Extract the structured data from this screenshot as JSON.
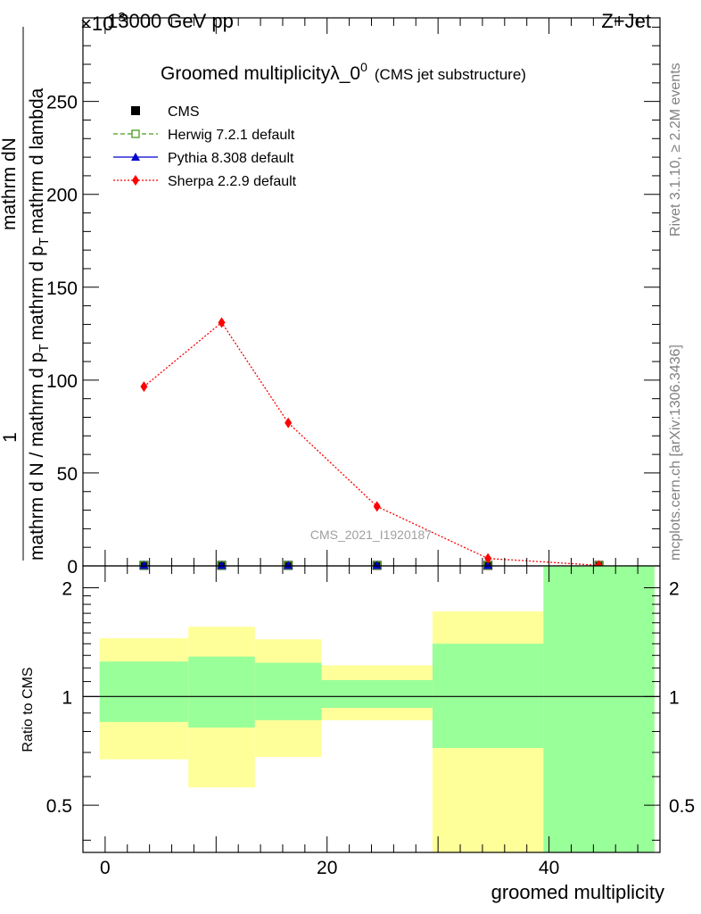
{
  "header": {
    "left": "13000 GeV pp",
    "right": "Z+Jet",
    "exponent": "×10",
    "exponent_power": "-3"
  },
  "side_labels": {
    "rivet": "Rivet 3.1.10, ≥ 2.2M events",
    "mcplots": "mcplots.cern.ch [arXiv:1306.3436]"
  },
  "chart_data": [
    {
      "type": "line",
      "title": "Groomed multiplicityλ_0",
      "title_sup": "0",
      "subtitle": "(CMS jet substructure)",
      "watermark": "CMS_2021_I1920187",
      "ylabel": {
        "numerator": "mathrm dN",
        "prefix": "1",
        "denominator_main": "mathrm d N / mathrm d p",
        "denominator_sub": "T",
        "denominator_tail": "mathrm d p",
        "denominator_tail_sub": "T",
        "denominator_end": "mathrm d lambda",
        "top_part": "mathrm d p",
        "top_sub": "T",
        "top_tail": "mathrm d lambda"
      },
      "xlim": [
        -2,
        50
      ],
      "ylim": [
        0,
        295
      ],
      "yticks": [
        0,
        50,
        100,
        150,
        200,
        250
      ],
      "x_bin_edges": [
        -0.5,
        7.5,
        13.5,
        19.5,
        29.5,
        39.5,
        49.5
      ],
      "x_centers": [
        3.5,
        10.5,
        16.5,
        24.5,
        34.5,
        44.5
      ],
      "legend": [
        {
          "name": "CMS",
          "style": "square",
          "color": "#000000"
        },
        {
          "name": "Herwig 7.2.1 default",
          "style": "open-square-dashed",
          "color": "#4a9a1c"
        },
        {
          "name": "Pythia 8.308 default",
          "style": "triangle-solid",
          "color": "#0000cc"
        },
        {
          "name": "Sherpa 2.2.9 default",
          "style": "diamond-dotted",
          "color": "#ff0000"
        }
      ],
      "series": [
        {
          "name": "CMS",
          "values": [
            0.3,
            0.3,
            0.3,
            0.3,
            0.3,
            0.3
          ]
        },
        {
          "name": "Herwig 7.2.1 default",
          "values": [
            0.3,
            0.3,
            0.3,
            0.3,
            0.3,
            0.3
          ]
        },
        {
          "name": "Pythia 8.308 default",
          "values": [
            0.3,
            0.3,
            0.3,
            0.3,
            0.3,
            0.3
          ]
        },
        {
          "name": "Sherpa 2.2.9 default",
          "values": [
            96.5,
            131,
            77,
            32,
            4,
            0.3
          ]
        }
      ]
    },
    {
      "type": "area",
      "ylabel": "Ratio to CMS",
      "xlabel": "groomed multiplicity",
      "xlim": [
        -2,
        50
      ],
      "ylim": [
        0.37,
        2.3
      ],
      "yscale": "log",
      "yticks": [
        0.5,
        1,
        2
      ],
      "xticks": [
        0,
        20,
        40
      ],
      "reference_line": 1,
      "band_colors": {
        "stat": "#99ff99",
        "total": "#ffff99"
      },
      "bands": [
        {
          "x0": -0.5,
          "x1": 7.5,
          "green": [
            0.85,
            1.25
          ],
          "yellow": [
            0.67,
            1.45
          ]
        },
        {
          "x0": 7.5,
          "x1": 13.5,
          "green": [
            0.82,
            1.29
          ],
          "yellow": [
            0.56,
            1.56
          ]
        },
        {
          "x0": 13.5,
          "x1": 19.5,
          "green": [
            0.86,
            1.24
          ],
          "yellow": [
            0.68,
            1.44
          ]
        },
        {
          "x0": 19.5,
          "x1": 29.5,
          "green": [
            0.93,
            1.11
          ],
          "yellow": [
            0.86,
            1.22
          ]
        },
        {
          "x0": 29.5,
          "x1": 39.5,
          "green": [
            0.72,
            1.4
          ],
          "yellow": [
            0.37,
            1.72
          ]
        },
        {
          "x0": 39.5,
          "x1": 49.5,
          "green": [
            0.37,
            2.3
          ],
          "yellow": [
            0.37,
            2.3
          ]
        }
      ]
    }
  ]
}
